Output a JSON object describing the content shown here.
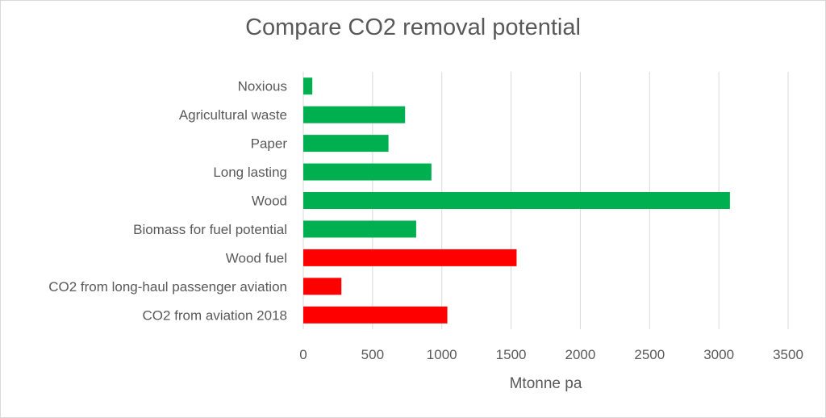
{
  "chart_data": {
    "type": "bar",
    "orientation": "horizontal",
    "title": "Compare CO2 removal potential",
    "xlabel": "Mtonne pa",
    "ylabel": "",
    "xlim": [
      0,
      3500
    ],
    "xticks": [
      0,
      500,
      1000,
      1500,
      2000,
      2500,
      3000,
      3500
    ],
    "grid": true,
    "categories": [
      "Noxious",
      "Agricultural waste",
      "Paper",
      "Long lasting",
      "Wood",
      "Biomass for fuel potential",
      "Wood fuel",
      "CO2 from long-haul passenger aviation",
      "CO2 from aviation 2018"
    ],
    "values": [
      65,
      735,
      615,
      925,
      3080,
      815,
      1540,
      275,
      1040
    ],
    "bar_colors": [
      "#00b050",
      "#00b050",
      "#00b050",
      "#00b050",
      "#00b050",
      "#00b050",
      "#ff0000",
      "#ff0000",
      "#ff0000"
    ]
  },
  "colors": {
    "gridline": "#d9d9d9",
    "text": "#595959"
  }
}
